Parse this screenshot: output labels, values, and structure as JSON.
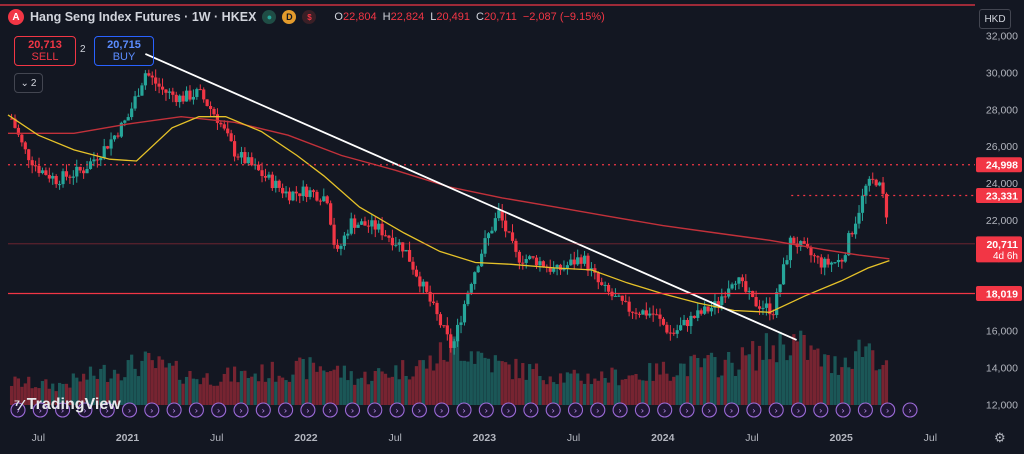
{
  "header": {
    "logo_letter": "A",
    "symbol": "Hang Seng Index Futures · 1W · HKEX",
    "badge_d": "D",
    "ohlc": {
      "o_label": "O",
      "o": "22,804",
      "h_label": "H",
      "h": "22,824",
      "l_label": "L",
      "l": "20,491",
      "c_label": "C",
      "c": "20,711",
      "change": "−2,087 (−9.15%)"
    }
  },
  "trade": {
    "sell_price": "20,713",
    "sell_label": "SELL",
    "spread": "2",
    "buy_price": "20,715",
    "buy_label": "BUY"
  },
  "collapse_label": "2",
  "currency": "HKD",
  "watermark": "TradingView",
  "colors": {
    "background": "#131722",
    "up": "#26a69a",
    "down": "#f23645",
    "ma_short": "#e6c229",
    "ma_long": "#c2313a",
    "trendline": "#ffffff",
    "level": "#f23645"
  },
  "chart_data": {
    "type": "candlestick",
    "timeframe": "1W",
    "y_axis": {
      "ticks": [
        12000,
        14000,
        16000,
        18000,
        20000,
        22000,
        24000,
        26000,
        28000,
        30000,
        32000
      ],
      "tick_labels": [
        "12,000",
        "14,000",
        "16,000",
        "18,000",
        "20,000",
        "22,000",
        "24,000",
        "26,000",
        "28,000",
        "30,000",
        "32,000"
      ],
      "range": [
        11000,
        32300
      ]
    },
    "x_axis": {
      "range_years": [
        2020.33,
        2025.75
      ],
      "ticks": [
        {
          "t": 2020.5,
          "label": "Jul"
        },
        {
          "t": 2021.0,
          "label": "2021"
        },
        {
          "t": 2021.5,
          "label": "Jul"
        },
        {
          "t": 2022.0,
          "label": "2022"
        },
        {
          "t": 2022.5,
          "label": "Jul"
        },
        {
          "t": 2023.0,
          "label": "2023"
        },
        {
          "t": 2023.5,
          "label": "Jul"
        },
        {
          "t": 2024.0,
          "label": "2024"
        },
        {
          "t": 2024.5,
          "label": "Jul"
        },
        {
          "t": 2025.0,
          "label": "2025"
        },
        {
          "t": 2025.5,
          "label": "Jul"
        }
      ]
    },
    "path": [
      [
        2020.35,
        27500
      ],
      [
        2020.42,
        25800
      ],
      [
        2020.5,
        24800
      ],
      [
        2020.6,
        24200
      ],
      [
        2020.75,
        24700
      ],
      [
        2020.88,
        26000
      ],
      [
        2021.0,
        27500
      ],
      [
        2021.1,
        30000
      ],
      [
        2021.2,
        29000
      ],
      [
        2021.3,
        28600
      ],
      [
        2021.4,
        28900
      ],
      [
        2021.5,
        27600
      ],
      [
        2021.6,
        25700
      ],
      [
        2021.75,
        24500
      ],
      [
        2021.9,
        23400
      ],
      [
        2022.0,
        23600
      ],
      [
        2022.12,
        23200
      ],
      [
        2022.17,
        20000
      ],
      [
        2022.25,
        21900
      ],
      [
        2022.4,
        21600
      ],
      [
        2022.55,
        20500
      ],
      [
        2022.7,
        17500
      ],
      [
        2022.82,
        15000
      ],
      [
        2022.92,
        18600
      ],
      [
        2023.0,
        20700
      ],
      [
        2023.08,
        22400
      ],
      [
        2023.18,
        20000
      ],
      [
        2023.3,
        19800
      ],
      [
        2023.4,
        19200
      ],
      [
        2023.55,
        20000
      ],
      [
        2023.65,
        18400
      ],
      [
        2023.8,
        17200
      ],
      [
        2023.95,
        16900
      ],
      [
        2024.05,
        15800
      ],
      [
        2024.15,
        16600
      ],
      [
        2024.3,
        17400
      ],
      [
        2024.4,
        19000
      ],
      [
        2024.5,
        17600
      ],
      [
        2024.62,
        17100
      ],
      [
        2024.72,
        21000
      ],
      [
        2024.8,
        20300
      ],
      [
        2024.9,
        19600
      ],
      [
        2025.0,
        19800
      ],
      [
        2025.08,
        22000
      ],
      [
        2025.14,
        23800
      ],
      [
        2025.2,
        24200
      ],
      [
        2025.25,
        22800
      ],
      [
        2025.27,
        20711
      ]
    ],
    "volume_path": [
      [
        2020.35,
        0.3
      ],
      [
        2020.6,
        0.25
      ],
      [
        2020.9,
        0.45
      ],
      [
        2021.1,
        0.55
      ],
      [
        2021.4,
        0.35
      ],
      [
        2021.7,
        0.4
      ],
      [
        2022.1,
        0.5
      ],
      [
        2022.3,
        0.35
      ],
      [
        2022.7,
        0.55
      ],
      [
        2022.85,
        0.8
      ],
      [
        2023.1,
        0.5
      ],
      [
        2023.5,
        0.35
      ],
      [
        2023.9,
        0.4
      ],
      [
        2024.1,
        0.5
      ],
      [
        2024.4,
        0.55
      ],
      [
        2024.72,
        0.85
      ],
      [
        2024.95,
        0.5
      ],
      [
        2025.15,
        0.8
      ],
      [
        2025.27,
        0.4
      ]
    ],
    "ma_short": [
      [
        2020.33,
        27700
      ],
      [
        2020.5,
        26600
      ],
      [
        2020.7,
        25800
      ],
      [
        2020.9,
        25300
      ],
      [
        2021.05,
        25200
      ],
      [
        2021.25,
        27000
      ],
      [
        2021.4,
        27600
      ],
      [
        2021.55,
        27600
      ],
      [
        2021.75,
        26800
      ],
      [
        2021.95,
        25500
      ],
      [
        2022.1,
        24400
      ],
      [
        2022.3,
        22700
      ],
      [
        2022.55,
        21300
      ],
      [
        2022.75,
        20300
      ],
      [
        2022.95,
        19700
      ],
      [
        2023.15,
        19600
      ],
      [
        2023.4,
        19400
      ],
      [
        2023.6,
        19300
      ],
      [
        2023.8,
        18600
      ],
      [
        2024.0,
        18000
      ],
      [
        2024.2,
        17500
      ],
      [
        2024.4,
        17100
      ],
      [
        2024.6,
        17000
      ],
      [
        2024.8,
        17900
      ],
      [
        2025.0,
        18700
      ],
      [
        2025.15,
        19400
      ],
      [
        2025.27,
        19800
      ]
    ],
    "ma_long": [
      [
        2020.33,
        26700
      ],
      [
        2020.7,
        26700
      ],
      [
        2021.0,
        27200
      ],
      [
        2021.3,
        27600
      ],
      [
        2021.6,
        27300
      ],
      [
        2021.9,
        26600
      ],
      [
        2022.2,
        25500
      ],
      [
        2022.5,
        24700
      ],
      [
        2022.8,
        23800
      ],
      [
        2023.1,
        23200
      ],
      [
        2023.4,
        22700
      ],
      [
        2023.7,
        22200
      ],
      [
        2024.0,
        21700
      ],
      [
        2024.3,
        21300
      ],
      [
        2024.6,
        20900
      ],
      [
        2024.9,
        20400
      ],
      [
        2025.1,
        20100
      ],
      [
        2025.27,
        19900
      ]
    ],
    "trendline": {
      "from": [
        2021.1,
        31000
      ],
      "to": [
        2024.75,
        15500
      ]
    },
    "levels": [
      {
        "value": 24998,
        "label": "24,998",
        "style": "dotted"
      },
      {
        "value": 23331,
        "label": "23,331",
        "style": "dotted",
        "from_t": 2024.72
      },
      {
        "value": 20711,
        "label": "20,711",
        "sublabel": "4d 6h",
        "style": "faint"
      },
      {
        "value": 18019,
        "label": "18,019",
        "style": "solid"
      }
    ]
  }
}
